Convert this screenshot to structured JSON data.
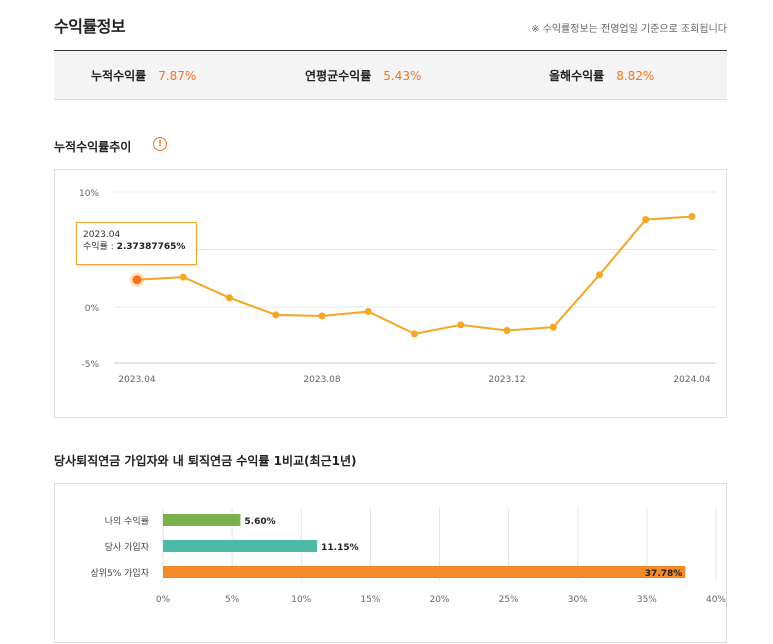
{
  "header": {
    "title": "수익률정보",
    "notice": "※ 수익률정보는 전영업일 기준으로 조회됩니다"
  },
  "summary": {
    "cumulative_label": "누적수익률",
    "cumulative_value": "7.87%",
    "annualized_label": "연평균수익률",
    "annualized_value": "5.43%",
    "ytd_label": "올해수익률",
    "ytd_value": "8.82%"
  },
  "trend": {
    "title": "누적수익률추이",
    "info_icon": "!",
    "tooltip": {
      "date": "2023.04",
      "label": "수익률 : ",
      "value": "2.37387765%"
    }
  },
  "compare": {
    "title": "당사퇴직연금 가입자와 내 퇴직연금 수익률 1비교(최근1년)"
  },
  "colors": {
    "accent": "#f37321",
    "line": "#f5a623",
    "bar_mine": "#7ab04d",
    "bar_company": "#4dbaa8",
    "bar_top5": "#f58a2a"
  },
  "chart_data": [
    {
      "type": "line",
      "x": [
        "2023.04",
        "2023.05",
        "2023.06",
        "2023.07",
        "2023.08",
        "2023.09",
        "2023.10",
        "2023.11",
        "2023.12",
        "2024.01",
        "2024.02",
        "2024.03",
        "2024.04"
      ],
      "x_tick_labels": [
        "2023.04",
        "2023.08",
        "2023.12",
        "2024.04"
      ],
      "y_tick_labels": [
        "10%",
        "0%",
        "-5%"
      ],
      "series": [
        {
          "values": [
            2.37,
            2.6,
            0.8,
            -0.7,
            -0.8,
            -0.4,
            -2.4,
            -1.6,
            -2.1,
            -1.8,
            2.8,
            7.6,
            7.87
          ]
        }
      ],
      "ylim": [
        -5,
        10
      ],
      "highlight_index": 0,
      "grid": true
    },
    {
      "type": "bar",
      "orientation": "horizontal",
      "categories": [
        "나의 수익률",
        "당사 가입자",
        "상위5% 가입자"
      ],
      "values": [
        5.6,
        11.15,
        37.78
      ],
      "value_labels": [
        "5.60%",
        "11.15%",
        "37.78%"
      ],
      "x_tick_labels": [
        "0%",
        "5%",
        "10%",
        "15%",
        "20%",
        "25%",
        "30%",
        "35%",
        "40%"
      ],
      "xlim": [
        0,
        40
      ],
      "grid": true
    }
  ]
}
